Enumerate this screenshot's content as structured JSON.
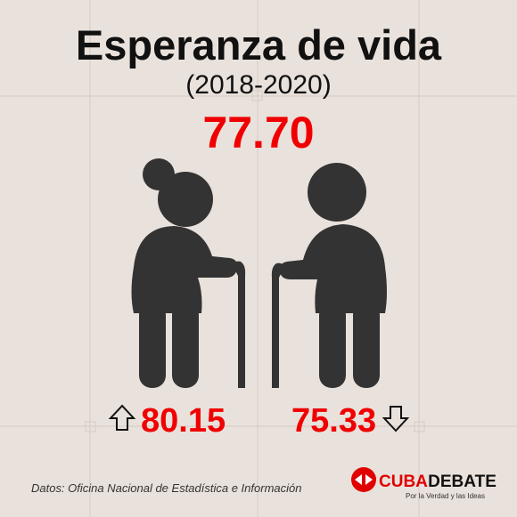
{
  "header": {
    "title": "Esperanza de vida",
    "subtitle": "(2018-2020)"
  },
  "overall": "77.70",
  "female": "80.15",
  "male": "75.33",
  "footer": {
    "source": "Datos: Oficina Nacional de Estadística e Información",
    "logo": {
      "part1": "CUBA",
      "part2": "DEBATE",
      "tagline": "Por la Verdad y las Ideas"
    }
  }
}
